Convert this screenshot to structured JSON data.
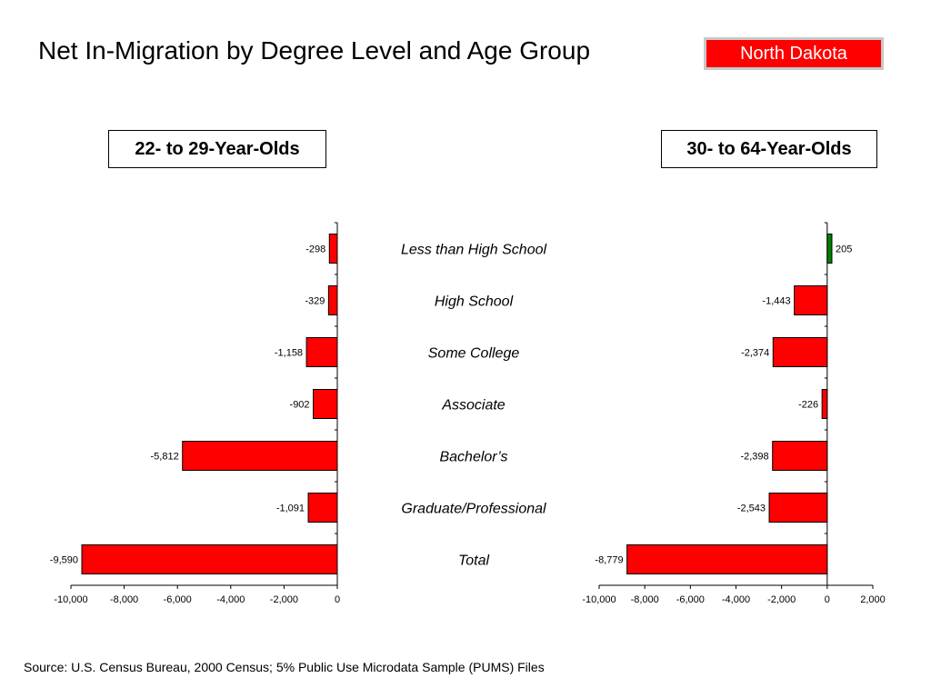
{
  "header": {
    "title": "Net In-Migration by Degree Level and Age Group",
    "state": "North Dakota"
  },
  "colors": {
    "negative": "#ff0000",
    "positive": "#008000",
    "state_badge": "#ff0000"
  },
  "chart_data": [
    {
      "type": "bar",
      "orientation": "horizontal",
      "title": "22- to 29-Year-Olds",
      "categories": [
        "Less than High School",
        "High School",
        "Some College",
        "Associate",
        "Bachelor’s",
        "Graduate/Professional",
        "Total"
      ],
      "values": [
        -298,
        -329,
        -1158,
        -902,
        -5812,
        -1091,
        -9590
      ],
      "value_labels": [
        "-298",
        "-329",
        "-1,158",
        "-902",
        "-5,812",
        "-1,091",
        "-9,590"
      ],
      "xlim": [
        -10000,
        0
      ],
      "ticks": [
        -10000,
        -8000,
        -6000,
        -4000,
        -2000,
        0
      ],
      "tick_labels": [
        "-10,000",
        "-8,000",
        "-6,000",
        "-4,000",
        "-2,000",
        "0"
      ],
      "grid": false
    },
    {
      "type": "bar",
      "orientation": "horizontal",
      "title": "30- to 64-Year-Olds",
      "categories": [
        "Less than High School",
        "High School",
        "Some College",
        "Associate",
        "Bachelor’s",
        "Graduate/Professional",
        "Total"
      ],
      "values": [
        205,
        -1443,
        -2374,
        -226,
        -2398,
        -2543,
        -8779
      ],
      "value_labels": [
        "205",
        "-1,443",
        "-2,374",
        "-226",
        "-2,398",
        "-2,543",
        "-8,779"
      ],
      "xlim": [
        -10000,
        2000
      ],
      "ticks": [
        -10000,
        -8000,
        -6000,
        -4000,
        -2000,
        0,
        2000
      ],
      "tick_labels": [
        "-10,000",
        "-8,000",
        "-6,000",
        "-4,000",
        "-2,000",
        "0",
        "2,000"
      ],
      "grid": false
    }
  ],
  "source": "Source:  U.S. Census Bureau, 2000 Census; 5% Public Use Microdata Sample (PUMS) Files"
}
